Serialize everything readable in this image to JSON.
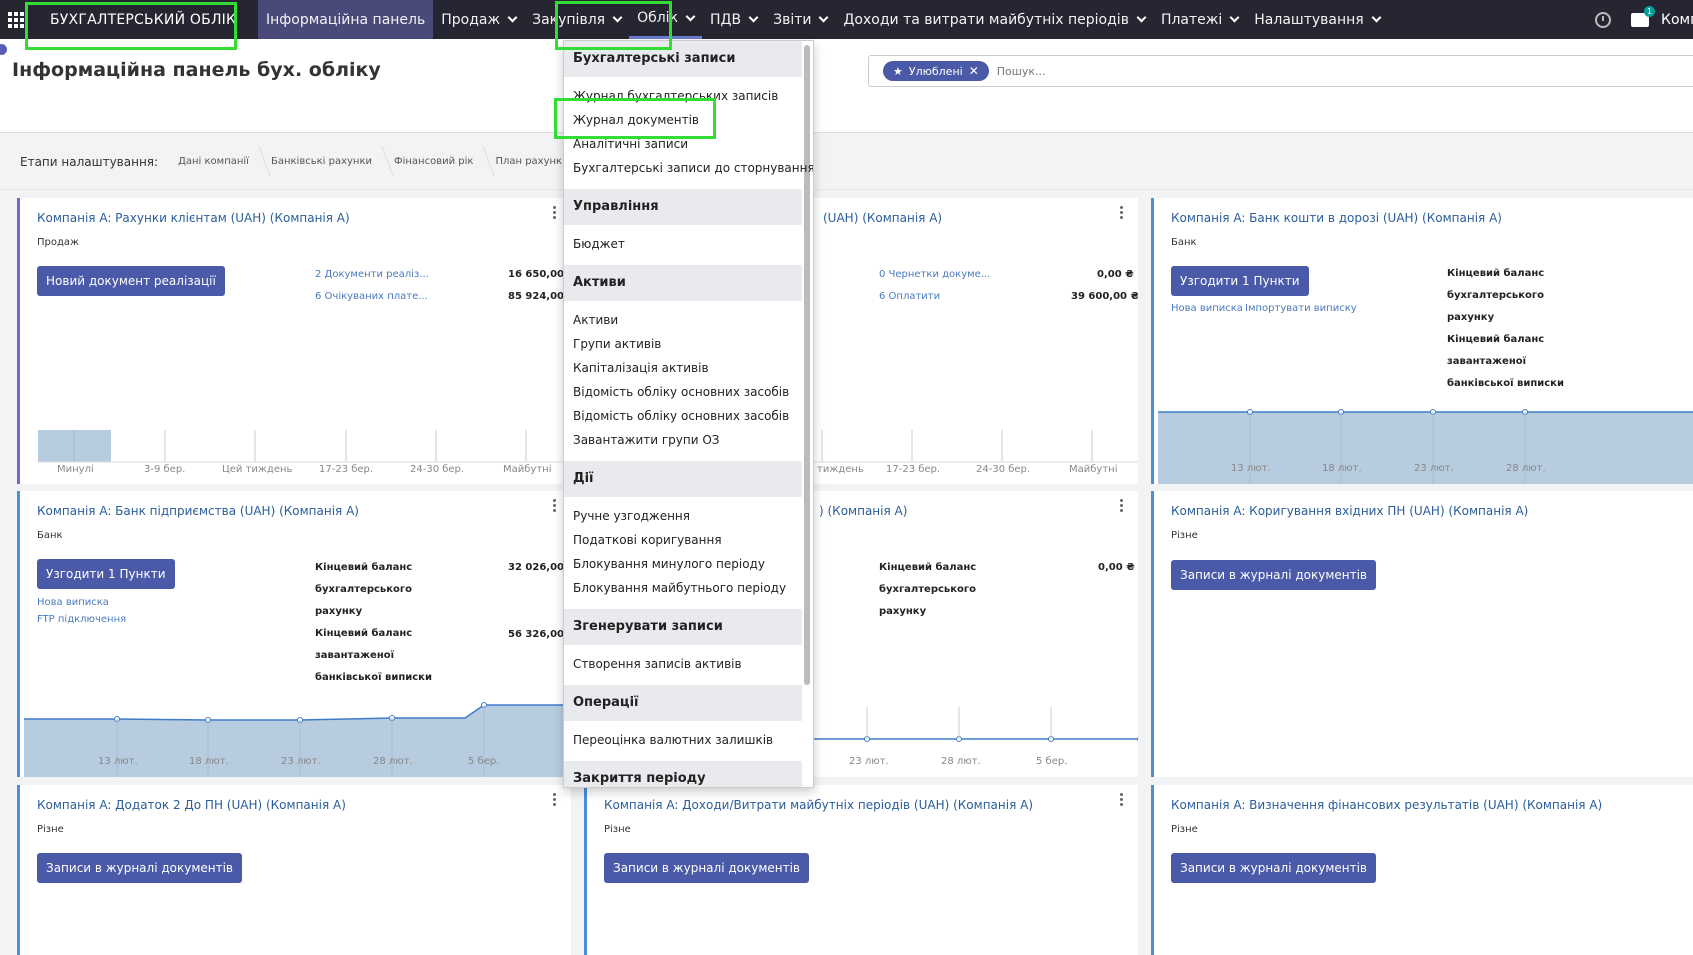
{
  "nav": {
    "brand": "БУХГАЛТЕРСЬКИЙ ОБЛІК",
    "items": [
      {
        "label": "Інформаційна панель"
      },
      {
        "label": "Продаж"
      },
      {
        "label": "Закупівля"
      },
      {
        "label": "Облік"
      },
      {
        "label": "ПДВ"
      },
      {
        "label": "Звіти"
      },
      {
        "label": "Доходи та витрати майбутніх періодів"
      },
      {
        "label": "Платежі"
      },
      {
        "label": "Налаштування"
      }
    ],
    "chat_badge": "1",
    "company": "Комп"
  },
  "page": {
    "title": "Інформаційна панель бух. обліку"
  },
  "search": {
    "facet": "Улюблені",
    "placeholder": "Пошук..."
  },
  "setup": {
    "label": "Етапи налаштування:",
    "steps": [
      "Дані компанії",
      "Банківські рахунки",
      "Фінансовий рік",
      "План рахунків"
    ]
  },
  "cards": {
    "sales": {
      "title": "Компанія A: Рахунки клієнтам (UAH) (Компанія A)",
      "type": "Продаж",
      "button": "Новий документ реалізації",
      "line1_label": "2 Документи реаліз...",
      "line1_amount": "16 650,00 ₴",
      "line2_label": "6 Очікуваних плате...",
      "line2_amount": "85 924,00 ₴",
      "axis": [
        "Минулі",
        "3-9 бер.",
        "Цей тиждень",
        "17-23 бер.",
        "24-30 бер.",
        "Майбутні"
      ]
    },
    "purchase": {
      "title": "Компанія A: Рахунки постачальників (UAH) (Компанія A)",
      "title_visible": "(UAH) (Компанія A)",
      "line1_label": "0 Чернетки докуме...",
      "line1_amount": "0,00 ₴",
      "line2_label": "6 Оплатити",
      "line2_amount": "39 600,00 ₴",
      "axis": [
        "тиждень",
        "17-23 бер.",
        "24-30 бер.",
        "Майбутні"
      ]
    },
    "transit": {
      "title": "Компанія A: Банк кошти в дорозі (UAH) (Компанія A)",
      "type": "Банк",
      "button": "Узгодити 1 Пункти",
      "link_new": "Нова виписка",
      "link_import": "Імпортувати виписку",
      "bal1": [
        "Кінцевий баланс",
        "бухгалтерського",
        "рахунку"
      ],
      "bal2": [
        "Кінцевий баланс",
        "завантаженої",
        "банківської виписки"
      ],
      "axis": [
        "13 лют.",
        "18 лют.",
        "23 лют.",
        "28 лют."
      ]
    },
    "bank": {
      "title": "Компанія A: Банк підприємства (UAH) (Компанія A)",
      "type": "Банк",
      "button": "Узгодити 1 Пункти",
      "link_new": "Нова виписка",
      "link_ftp": "FTP підключення",
      "bal1": [
        "Кінцевий баланс",
        "бухгалтерського",
        "рахунку"
      ],
      "bal1_amount": "32 026,00 ₴",
      "bal2": [
        "Кінцевий баланс",
        "завантаженої",
        "банківської виписки"
      ],
      "bal2_amount": "56 326,00 ₴",
      "axis": [
        "13 лют.",
        "18 лют.",
        "23 лют.",
        "28 лют.",
        "5 бер."
      ]
    },
    "cash": {
      "title_visible": ") (Компанія A)",
      "bal1": [
        "Кінцевий баланс",
        "бухгалтерського",
        "рахунку"
      ],
      "bal1_amount": "0,00 ₴",
      "axis": [
        "23 лют.",
        "28 лют.",
        "5 бер."
      ]
    },
    "adjust": {
      "title": "Компанія A: Коригування вхідних ПН (UAH) (Компанія A)",
      "type": "Різне",
      "button": "Записи в журналі документів"
    },
    "addendum": {
      "title": "Компанія A: Додаток 2 До ПН (UAH) (Компанія A)",
      "type": "Різне",
      "button": "Записи в журналі документів"
    },
    "deferred": {
      "title": "Компанія A: Доходи/Витрати майбутніх періодів (UAH) (Компанія A)",
      "type": "Різне",
      "button": "Записи в журналі документів"
    },
    "results": {
      "title": "Компанія A: Визначення фінансових результатів (UAH) (Компанія A)",
      "type": "Різне",
      "button": "Записи в журналі документів"
    }
  },
  "dropdown": {
    "sections": [
      {
        "title": "Бухгалтерські записи",
        "items": [
          "Журнал бухгалтерських записів",
          "Журнал документів",
          "Аналітичні записи",
          "Бухгалтерські записи до сторнування"
        ]
      },
      {
        "title": "Управління",
        "items": [
          "Бюджет"
        ]
      },
      {
        "title": "Активи",
        "items": [
          "Активи",
          "Групи активів",
          "Капіталізація активів",
          "Відомість обліку основних засобів",
          "Відомість обліку основних засобів",
          "Завантажити групи ОЗ"
        ]
      },
      {
        "title": "Дії",
        "items": [
          "Ручне узгодження",
          "Податкові коригування",
          "Блокування минулого періоду",
          "Блокування майбутнього періоду"
        ]
      },
      {
        "title": "Згенерувати записи",
        "items": [
          "Створення записів активів"
        ]
      },
      {
        "title": "Операції",
        "items": [
          "Переоцінка валютних залишків"
        ]
      },
      {
        "title": "Закриття періоду",
        "items": []
      }
    ]
  },
  "colors": {
    "nav_bg": "#262633",
    "primary": "#4a5aa8",
    "highlight": "#33dd33",
    "chart_fill": "#b8cce0",
    "chart_line": "#3d7cc9"
  }
}
